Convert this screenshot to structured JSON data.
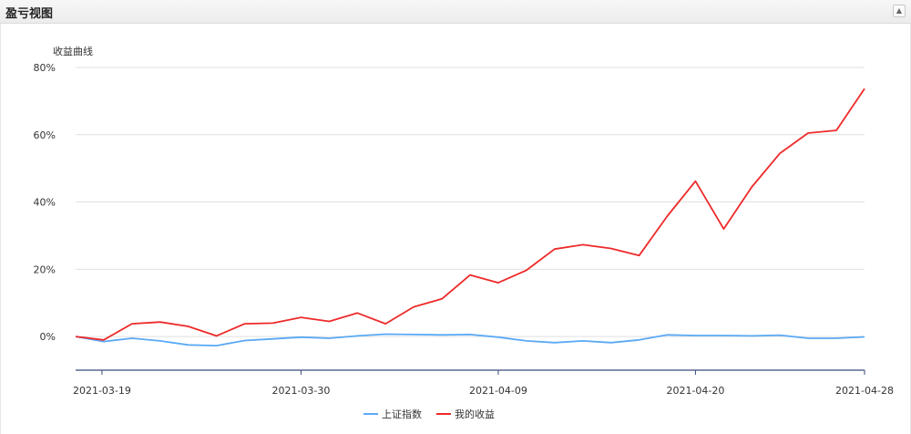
{
  "panel": {
    "title": "盈亏视图",
    "collapse_icon": "chevron-up-icon"
  },
  "colors": {
    "index_line": "#5aa9f5",
    "profit_line": "#ee2a2a",
    "grid": "#e0e0e0",
    "axis": "#3a4a7a"
  },
  "chart_data": {
    "type": "line",
    "title": "",
    "ylabel": "收益曲线",
    "xlabel": "",
    "ylim": [
      -10,
      80
    ],
    "yticks": [
      0,
      20,
      40,
      60,
      80
    ],
    "ytick_labels": [
      "0%",
      "20%",
      "40%",
      "60%",
      "80%"
    ],
    "xtick_labels": [
      "2021-03-19",
      "2021-03-30",
      "2021-04-09",
      "2021-04-20",
      "2021-04-28"
    ],
    "xtick_indices": [
      1,
      8,
      15,
      22,
      28
    ],
    "grid": true,
    "legend_position": "bottom-center",
    "categories": [
      "1",
      "2",
      "3",
      "4",
      "5",
      "6",
      "7",
      "8",
      "9",
      "10",
      "11",
      "12",
      "13",
      "14",
      "15",
      "16",
      "17",
      "18",
      "19",
      "20",
      "21",
      "22",
      "23",
      "24",
      "25",
      "26",
      "27",
      "28",
      "29"
    ],
    "series": [
      {
        "name": "上证指数",
        "values": [
          0,
          -1.5,
          -0.5,
          -1.3,
          -2.5,
          -2.7,
          -1.2,
          -0.7,
          -0.2,
          -0.5,
          0.2,
          0.7,
          0.6,
          0.5,
          0.6,
          -0.2,
          -1.3,
          -1.8,
          -1.3,
          -1.8,
          -1.0,
          0.5,
          0.3,
          0.3,
          0.2,
          0.4,
          -0.5,
          -0.5,
          -0.1
        ]
      },
      {
        "name": "我的收益",
        "values": [
          0,
          -1.0,
          3.8,
          4.3,
          3.0,
          0.2,
          3.8,
          4.0,
          5.7,
          4.5,
          7.0,
          3.8,
          8.8,
          11.2,
          18.3,
          16.0,
          19.7,
          26.0,
          27.3,
          26.2,
          24.1,
          35.8,
          46.2,
          32.0,
          44.5,
          54.5,
          60.5,
          61.3,
          73.7
        ]
      }
    ]
  }
}
